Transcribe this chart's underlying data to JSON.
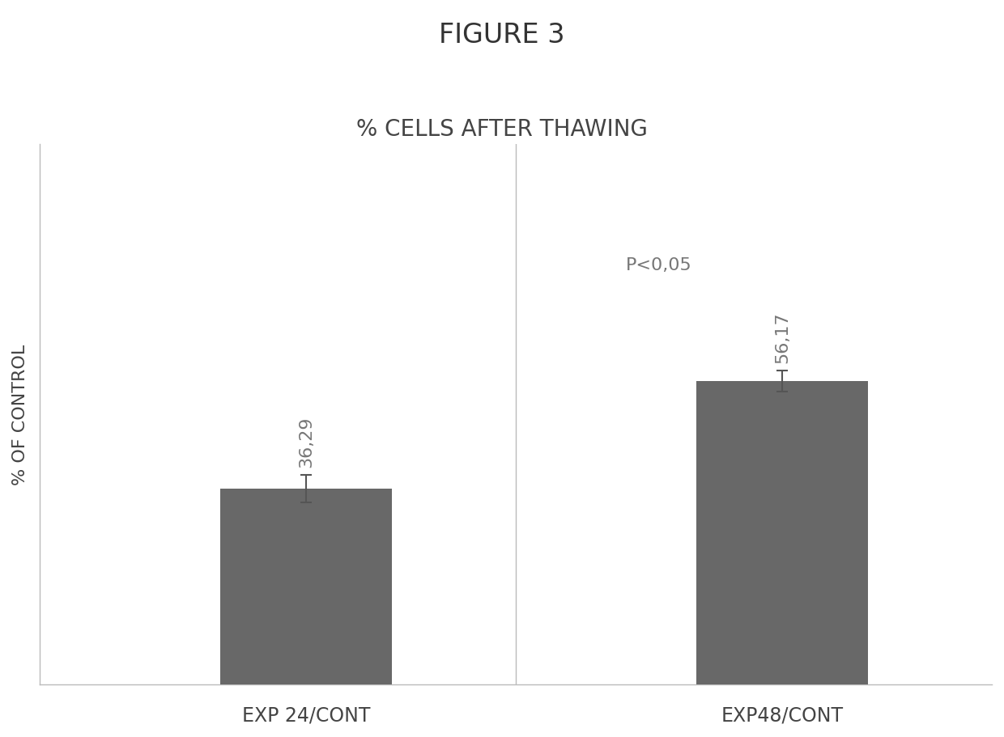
{
  "title": "FIGURE 3",
  "subtitle": "% CELLS AFTER THAWING",
  "ylabel": "% OF CONTROL",
  "categories": [
    "EXP 24/CONT",
    "EXP48/CONT"
  ],
  "values": [
    36.29,
    56.17
  ],
  "errors": [
    2.5,
    2.0
  ],
  "bar_color": "#686868",
  "bar_width": 0.18,
  "ylim": [
    0,
    100
  ],
  "value_labels": [
    "36,29",
    "56,17"
  ],
  "pvalue_label": "P<0,05",
  "title_fontsize": 24,
  "subtitle_fontsize": 20,
  "tick_label_fontsize": 17,
  "ylabel_fontsize": 16,
  "value_label_fontsize": 16,
  "pvalue_fontsize": 16,
  "background_color": "#ffffff",
  "text_color": "#777777",
  "bar_positions": [
    0.28,
    0.78
  ]
}
